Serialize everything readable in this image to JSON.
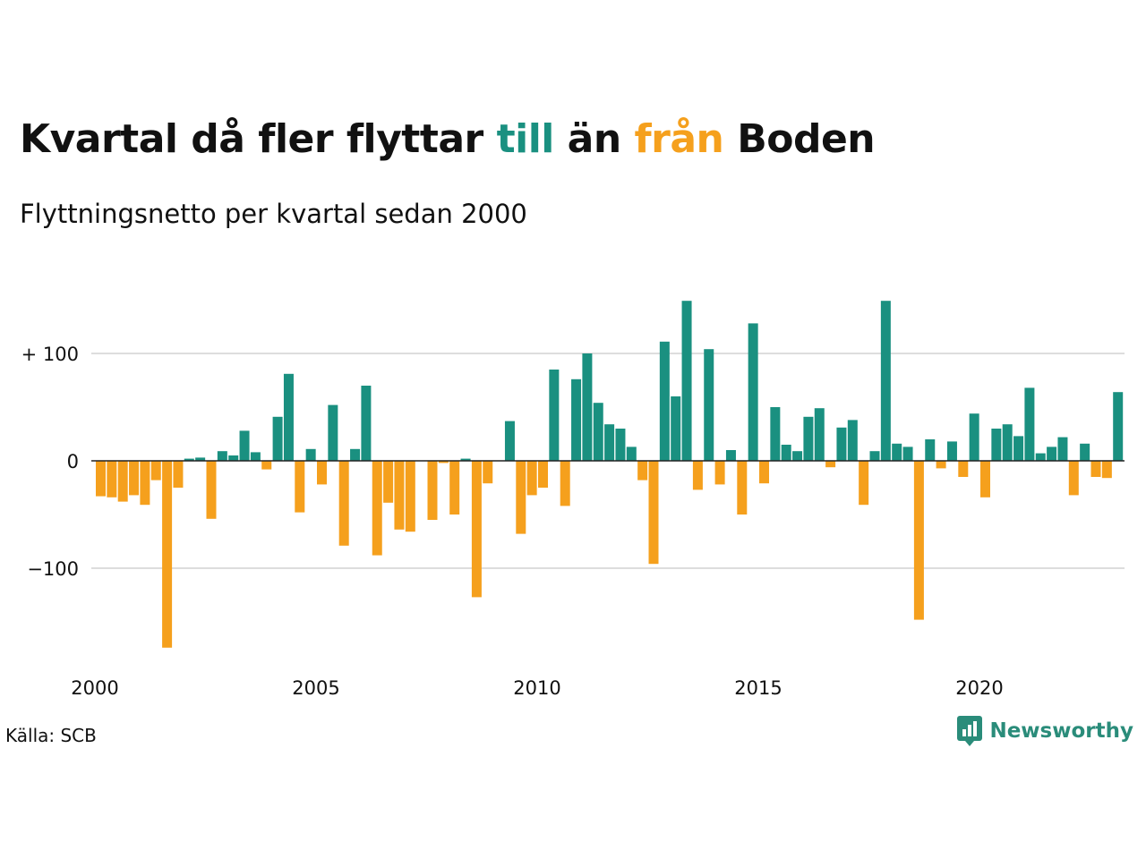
{
  "title": {
    "part1": "Kvartal då fler flyttar ",
    "till": "till",
    "part2": " än ",
    "fran": "från",
    "part3": " Boden"
  },
  "subtitle": "Flyttningsnetto per kvartal sedan 2000",
  "source": "Källa: SCB",
  "brand": "Newsworthy",
  "colors": {
    "positive": "#1a9080",
    "negative": "#f5a01d",
    "grid": "#dddddd",
    "text": "#111111",
    "brand": "#2a8c7a"
  },
  "chart_data": {
    "type": "bar",
    "start_year": 2000,
    "quarters_per_year": 4,
    "ylim": [
      -175,
      150
    ],
    "y_ticks": [
      {
        "value": 100,
        "label": "+ 100"
      },
      {
        "value": 0,
        "label": "0"
      },
      {
        "value": -100,
        "label": "−100"
      }
    ],
    "x_ticks": [
      {
        "value": 2000,
        "label": "2000"
      },
      {
        "value": 2005,
        "label": "2005"
      },
      {
        "value": 2010,
        "label": "2010"
      },
      {
        "value": 2015,
        "label": "2015"
      },
      {
        "value": 2020,
        "label": "2020"
      }
    ],
    "grid": true,
    "values": [
      -33,
      -34,
      -38,
      -32,
      -41,
      -18,
      -174,
      -25,
      2,
      3,
      -54,
      9,
      5,
      28,
      8,
      -8,
      41,
      81,
      -48,
      11,
      -22,
      52,
      -79,
      11,
      70,
      -88,
      -39,
      -64,
      -66,
      0,
      -55,
      -2,
      -50,
      2,
      -127,
      -21,
      0,
      37,
      -68,
      -32,
      -25,
      85,
      -42,
      76,
      100,
      54,
      34,
      30,
      13,
      -18,
      -96,
      111,
      60,
      149,
      -27,
      104,
      -22,
      10,
      -50,
      128,
      -21,
      50,
      15,
      9,
      41,
      49,
      -6,
      31,
      38,
      -41,
      9,
      149,
      16,
      13,
      -148,
      20,
      -7,
      18,
      -15,
      44,
      -34,
      30,
      34,
      23,
      68,
      7,
      13,
      22,
      -32,
      16,
      -15,
      -16,
      64
    ]
  }
}
